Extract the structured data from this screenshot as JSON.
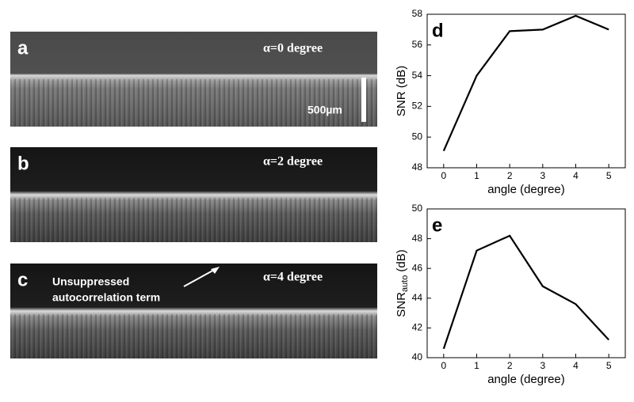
{
  "image_panels": [
    {
      "label": "a",
      "angle_text": "α=0 degree",
      "scale_text": "500µm"
    },
    {
      "label": "b",
      "angle_text": "α=2 degree"
    },
    {
      "label": "c",
      "angle_text": "α=4 degree",
      "annotation": [
        "Unsuppressed",
        "autocorrelation term"
      ]
    }
  ],
  "chart_data": [
    {
      "type": "line",
      "panel_label": "d",
      "xlabel": "angle (degree)",
      "ylabel": "SNR (dB)",
      "x": [
        0,
        1,
        2,
        3,
        4,
        5
      ],
      "values": [
        49.1,
        54,
        56.9,
        57,
        57.9,
        57
      ],
      "color": "#000000",
      "xlim": [
        -0.5,
        5.5
      ],
      "xticks": [
        0,
        1,
        2,
        3,
        4,
        5
      ],
      "ylim": [
        48,
        58
      ],
      "yticks": [
        48,
        50,
        52,
        54,
        56,
        58
      ]
    },
    {
      "type": "line",
      "panel_label": "e",
      "xlabel": "angle (degree)",
      "ylabel": "SNR",
      "ylabel_sub": "auto",
      "ylabel_unit": "(dB)",
      "x": [
        0,
        1,
        2,
        3,
        4,
        5
      ],
      "values": [
        40.6,
        47.2,
        48.2,
        44.8,
        43.6,
        41.2
      ],
      "color": "#000000",
      "xlim": [
        -0.5,
        5.5
      ],
      "xticks": [
        0,
        1,
        2,
        3,
        4,
        5
      ],
      "ylim": [
        40,
        50
      ],
      "yticks": [
        40,
        42,
        44,
        46,
        48,
        50
      ]
    }
  ]
}
